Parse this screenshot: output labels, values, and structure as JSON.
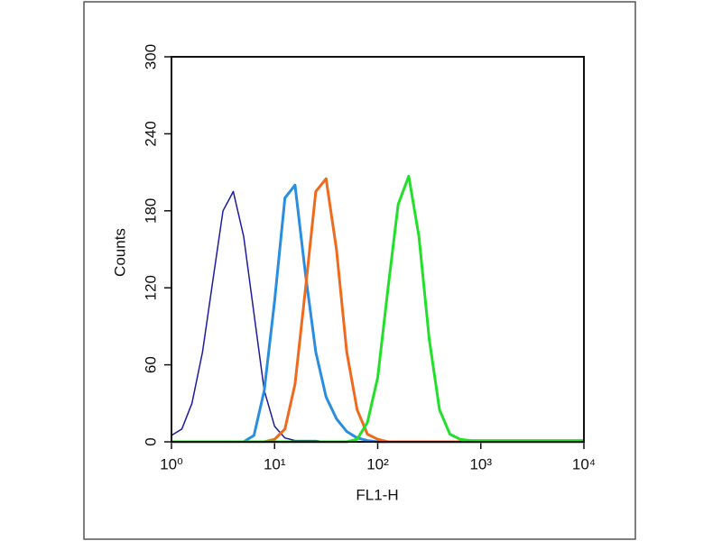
{
  "chart_data": {
    "type": "line",
    "x_label": "FL1-H",
    "y_label": "Counts",
    "log_x": true,
    "xlim": [
      1,
      10000
    ],
    "xticks": [
      {
        "value": 1,
        "label": "10⁰"
      },
      {
        "value": 10,
        "label": "10¹"
      },
      {
        "value": 100,
        "label": "10²"
      },
      {
        "value": 1000,
        "label": "10³"
      },
      {
        "value": 10000,
        "label": "10⁴"
      }
    ],
    "ylim": [
      0,
      300
    ],
    "yticks": [
      0,
      60,
      120,
      180,
      240,
      300
    ],
    "x": [
      1,
      1.26,
      1.58,
      2,
      2.51,
      3.16,
      3.98,
      5.01,
      6.31,
      7.94,
      10,
      12.6,
      15.8,
      20,
      25.1,
      31.6,
      39.8,
      50.1,
      63.1,
      79.4,
      100,
      126,
      158,
      200,
      251,
      316,
      398,
      501,
      631,
      794,
      1000,
      1259,
      1585,
      1995,
      2512,
      3162,
      3981,
      5012,
      6310,
      7943,
      10000
    ],
    "series": [
      {
        "color": "#1c1c9c",
        "values": [
          5,
          10,
          30,
          70,
          125,
          180,
          195,
          160,
          100,
          40,
          12,
          3,
          1,
          1,
          1,
          0,
          0,
          0,
          0,
          0,
          0,
          0,
          0,
          0,
          0,
          0,
          0,
          0,
          0,
          0,
          0,
          0,
          0,
          0,
          0,
          0,
          0,
          0,
          0,
          0,
          0
        ]
      },
      {
        "color": "#2a8ee0",
        "values": [
          0,
          0,
          0,
          0,
          0,
          0,
          0,
          0,
          5,
          40,
          110,
          190,
          200,
          130,
          70,
          35,
          18,
          8,
          3,
          1,
          0,
          0,
          0,
          0,
          0,
          0,
          0,
          0,
          0,
          0,
          0,
          0,
          0,
          0,
          0,
          0,
          0,
          0,
          0,
          0,
          0
        ]
      },
      {
        "color": "#f06a1e",
        "values": [
          0,
          0,
          0,
          0,
          0,
          0,
          0,
          0,
          0,
          0,
          2,
          10,
          45,
          120,
          195,
          205,
          150,
          70,
          25,
          6,
          2,
          0,
          0,
          0,
          0,
          0,
          0,
          0,
          0,
          0,
          0,
          0,
          0,
          0,
          0,
          0,
          0,
          0,
          0,
          0,
          0
        ]
      },
      {
        "color": "#22e02a",
        "values": [
          0,
          0,
          0,
          0,
          0,
          0,
          0,
          0,
          0,
          0,
          0,
          0,
          0,
          0,
          0,
          0,
          0,
          0,
          2,
          15,
          50,
          120,
          185,
          207,
          160,
          80,
          25,
          6,
          2,
          1,
          1,
          1,
          1,
          1,
          1,
          1,
          1,
          1,
          1,
          1,
          1
        ]
      }
    ]
  }
}
